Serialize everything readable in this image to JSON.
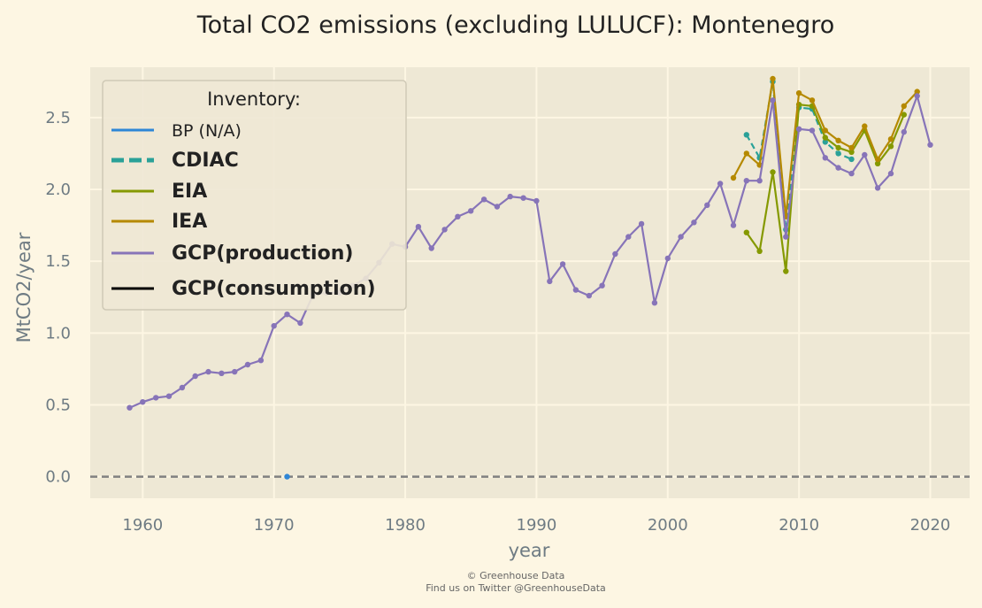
{
  "chart_data": {
    "type": "line",
    "title": "Total CO2 emissions (excluding LULUCF): Montenegro",
    "xlabel": "year",
    "ylabel": "MtCO2/year",
    "xlim": [
      1956,
      2023
    ],
    "ylim": [
      -0.15,
      2.85
    ],
    "xticks": [
      1960,
      1970,
      1980,
      1990,
      2000,
      2010,
      2020
    ],
    "yticks": [
      0.0,
      0.5,
      1.0,
      1.5,
      2.0,
      2.5
    ],
    "ytick_labels": [
      "0.0",
      "0.5",
      "1.0",
      "1.5",
      "2.0",
      "2.5"
    ],
    "grid": true,
    "legend_title": "Inventory:",
    "legend_position": "top-left",
    "zero_line": true,
    "series": [
      {
        "name": "BP (N/A)",
        "color": "#2e86d6",
        "style": "solid",
        "points": [
          [
            1971,
            0.0
          ]
        ]
      },
      {
        "name": "CDIAC",
        "color": "#2aa198",
        "style": "dashed",
        "points": [
          [
            2006,
            2.38
          ],
          [
            2007,
            2.22
          ],
          [
            2008,
            2.75
          ],
          [
            2009,
            1.72
          ],
          [
            2010,
            2.57
          ],
          [
            2011,
            2.56
          ],
          [
            2012,
            2.33
          ],
          [
            2013,
            2.25
          ],
          [
            2014,
            2.21
          ]
        ]
      },
      {
        "name": "EIA",
        "color": "#859900",
        "style": "solid",
        "points": [
          [
            2006,
            1.7
          ],
          [
            2007,
            1.57
          ],
          [
            2008,
            2.12
          ],
          [
            2009,
            1.43
          ],
          [
            2010,
            2.59
          ],
          [
            2011,
            2.58
          ],
          [
            2012,
            2.36
          ],
          [
            2013,
            2.29
          ],
          [
            2014,
            2.26
          ],
          [
            2015,
            2.41
          ],
          [
            2016,
            2.18
          ],
          [
            2017,
            2.3
          ],
          [
            2018,
            2.52
          ]
        ]
      },
      {
        "name": "IEA",
        "color": "#b58900",
        "style": "solid",
        "points": [
          [
            2005,
            2.08
          ],
          [
            2006,
            2.25
          ],
          [
            2007,
            2.17
          ],
          [
            2008,
            2.77
          ],
          [
            2009,
            1.81
          ],
          [
            2010,
            2.67
          ],
          [
            2011,
            2.62
          ],
          [
            2012,
            2.41
          ],
          [
            2013,
            2.34
          ],
          [
            2014,
            2.29
          ],
          [
            2015,
            2.44
          ],
          [
            2016,
            2.21
          ],
          [
            2017,
            2.35
          ],
          [
            2018,
            2.58
          ],
          [
            2019,
            2.68
          ]
        ]
      },
      {
        "name": "GCP(production)",
        "color": "#8774b8",
        "style": "solid",
        "points": [
          [
            1959,
            0.48
          ],
          [
            1960,
            0.52
          ],
          [
            1961,
            0.55
          ],
          [
            1962,
            0.56
          ],
          [
            1963,
            0.62
          ],
          [
            1964,
            0.7
          ],
          [
            1965,
            0.73
          ],
          [
            1966,
            0.72
          ],
          [
            1967,
            0.73
          ],
          [
            1968,
            0.78
          ],
          [
            1969,
            0.81
          ],
          [
            1970,
            1.05
          ],
          [
            1971,
            1.13
          ],
          [
            1972,
            1.07
          ],
          [
            1973,
            1.27
          ],
          [
            1974,
            1.28
          ],
          [
            1975,
            1.28
          ],
          [
            1976,
            1.33
          ],
          [
            1977,
            1.38
          ],
          [
            1978,
            1.49
          ],
          [
            1979,
            1.62
          ],
          [
            1980,
            1.6
          ],
          [
            1981,
            1.74
          ],
          [
            1982,
            1.59
          ],
          [
            1983,
            1.72
          ],
          [
            1984,
            1.81
          ],
          [
            1985,
            1.85
          ],
          [
            1986,
            1.93
          ],
          [
            1987,
            1.88
          ],
          [
            1988,
            1.95
          ],
          [
            1989,
            1.94
          ],
          [
            1990,
            1.92
          ],
          [
            1991,
            1.36
          ],
          [
            1992,
            1.48
          ],
          [
            1993,
            1.3
          ],
          [
            1994,
            1.26
          ],
          [
            1995,
            1.33
          ],
          [
            1996,
            1.55
          ],
          [
            1997,
            1.67
          ],
          [
            1998,
            1.76
          ],
          [
            1999,
            1.21
          ],
          [
            2000,
            1.52
          ],
          [
            2001,
            1.67
          ],
          [
            2002,
            1.77
          ],
          [
            2003,
            1.89
          ],
          [
            2004,
            2.04
          ],
          [
            2005,
            1.75
          ],
          [
            2006,
            2.06
          ],
          [
            2007,
            2.06
          ],
          [
            2008,
            2.62
          ],
          [
            2009,
            1.67
          ],
          [
            2010,
            2.42
          ],
          [
            2011,
            2.41
          ],
          [
            2012,
            2.22
          ],
          [
            2013,
            2.15
          ],
          [
            2014,
            2.11
          ],
          [
            2015,
            2.24
          ],
          [
            2016,
            2.01
          ],
          [
            2017,
            2.11
          ],
          [
            2018,
            2.4
          ],
          [
            2019,
            2.65
          ],
          [
            2020,
            2.31
          ]
        ]
      },
      {
        "name": "GCP(consumption)",
        "color": "#000000",
        "style": "solid",
        "points": []
      }
    ]
  },
  "credit": {
    "line1": "© Greenhouse Data",
    "line2": "Find us on Twitter @GreenhouseData"
  }
}
